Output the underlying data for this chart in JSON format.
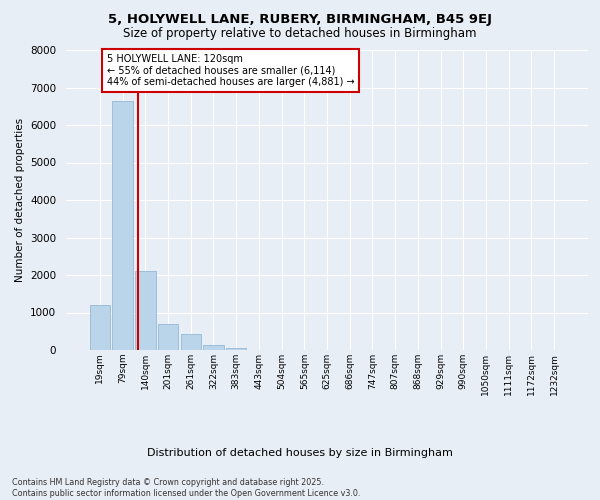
{
  "title1": "5, HOLYWELL LANE, RUBERY, BIRMINGHAM, B45 9EJ",
  "title2": "Size of property relative to detached houses in Birmingham",
  "xlabel": "Distribution of detached houses by size in Birmingham",
  "ylabel": "Number of detached properties",
  "categories": [
    "19sqm",
    "79sqm",
    "140sqm",
    "201sqm",
    "261sqm",
    "322sqm",
    "383sqm",
    "443sqm",
    "504sqm",
    "565sqm",
    "625sqm",
    "686sqm",
    "747sqm",
    "807sqm",
    "868sqm",
    "929sqm",
    "990sqm",
    "1050sqm",
    "1111sqm",
    "1172sqm",
    "1232sqm"
  ],
  "values": [
    1200,
    6650,
    2100,
    700,
    420,
    130,
    55,
    10,
    3,
    0,
    0,
    0,
    0,
    0,
    0,
    0,
    0,
    0,
    0,
    0,
    0
  ],
  "bar_color": "#bad4ea",
  "bar_edge_color": "#8ab0d0",
  "vline_color": "#cc0000",
  "annotation_title": "5 HOLYWELL LANE: 120sqm",
  "annotation_line1": "← 55% of detached houses are smaller (6,114)",
  "annotation_line2": "44% of semi-detached houses are larger (4,881) →",
  "annotation_box_color": "#cc0000",
  "ylim": [
    0,
    8000
  ],
  "yticks": [
    0,
    1000,
    2000,
    3000,
    4000,
    5000,
    6000,
    7000,
    8000
  ],
  "footer1": "Contains HM Land Registry data © Crown copyright and database right 2025.",
  "footer2": "Contains public sector information licensed under the Open Government Licence v3.0.",
  "bg_color": "#e8eef5",
  "plot_bg_color": "#e8eef5"
}
